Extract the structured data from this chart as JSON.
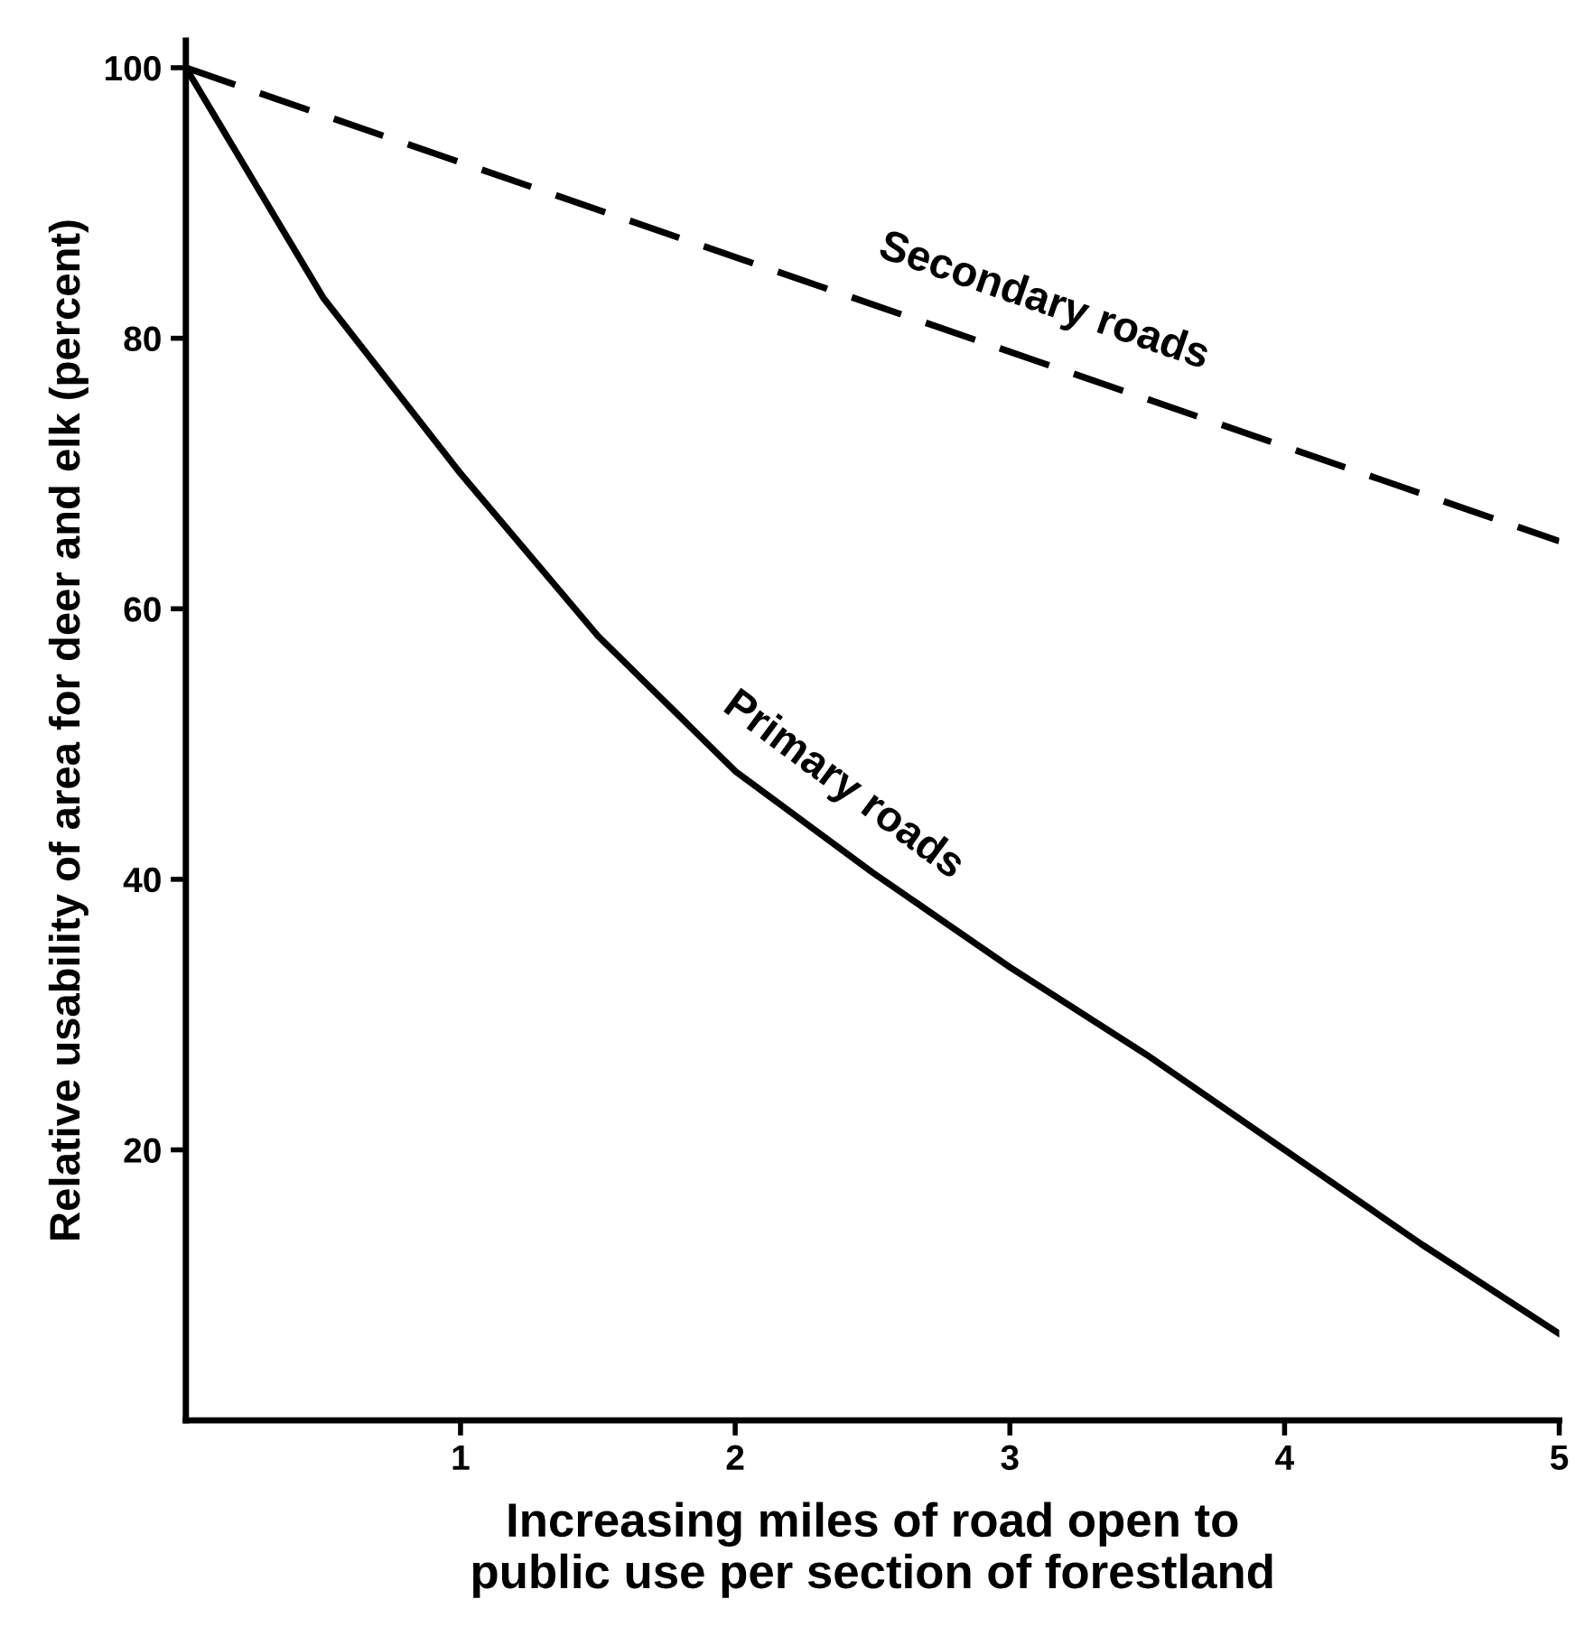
{
  "chart_data": {
    "type": "line",
    "xlabel": "Increasing miles of road open to\npublic use per section of forestland",
    "ylabel": "Relative usability of area for deer and elk (percent)",
    "xlim": [
      0,
      5
    ],
    "xticks": [
      1,
      2,
      3,
      4,
      5
    ],
    "ylim": [
      0,
      102
    ],
    "yticks": [
      20,
      40,
      60,
      80,
      100
    ],
    "grid": false,
    "legend": false,
    "marker": "none",
    "series": [
      {
        "name": "Secondary roads",
        "color": "#000000",
        "line_style": "dashed",
        "x": [
          0,
          5
        ],
        "values": [
          100,
          65
        ]
      },
      {
        "name": "Primary roads",
        "color": "#000000",
        "line_style": "solid",
        "x": [
          0,
          0.5,
          1,
          1.5,
          2,
          2.5,
          3,
          3.5,
          4,
          4.5,
          5
        ],
        "values": [
          100,
          83,
          70,
          58,
          48,
          40.5,
          33.5,
          27,
          20,
          13,
          6.4
        ]
      }
    ]
  }
}
